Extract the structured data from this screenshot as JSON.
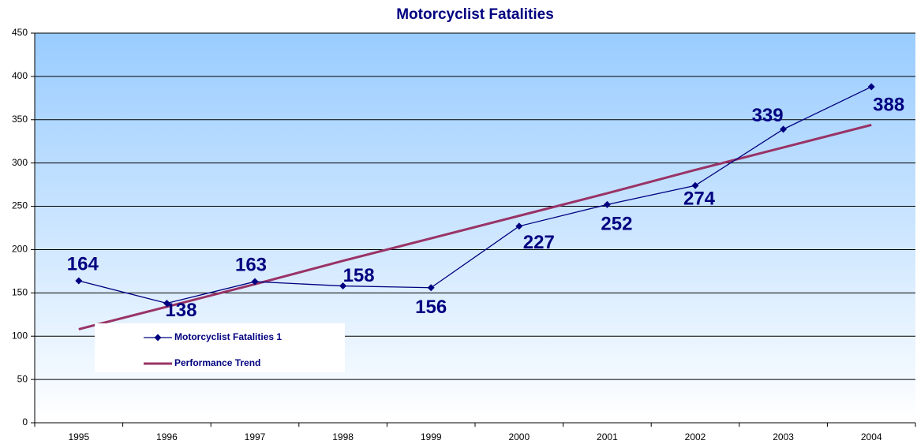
{
  "chart_data": {
    "type": "line",
    "title": "Motorcyclist Fatalities",
    "categories": [
      "1995",
      "1996",
      "1997",
      "1998",
      "1999",
      "2000",
      "2001",
      "2002",
      "2003",
      "2004"
    ],
    "series": [
      {
        "name": "Motorcyclist Fatalities 1",
        "color": "#000080",
        "values": [
          164,
          138,
          163,
          158,
          156,
          227,
          252,
          274,
          339,
          388
        ]
      },
      {
        "name": "Performance Trend",
        "color": "#993366",
        "values": [
          108,
          134,
          160,
          187,
          213,
          239,
          265,
          292,
          318,
          344
        ]
      }
    ],
    "ylim": [
      0,
      450
    ],
    "yticks": [
      0,
      50,
      100,
      150,
      200,
      250,
      300,
      350,
      400,
      450
    ],
    "grid": true
  }
}
